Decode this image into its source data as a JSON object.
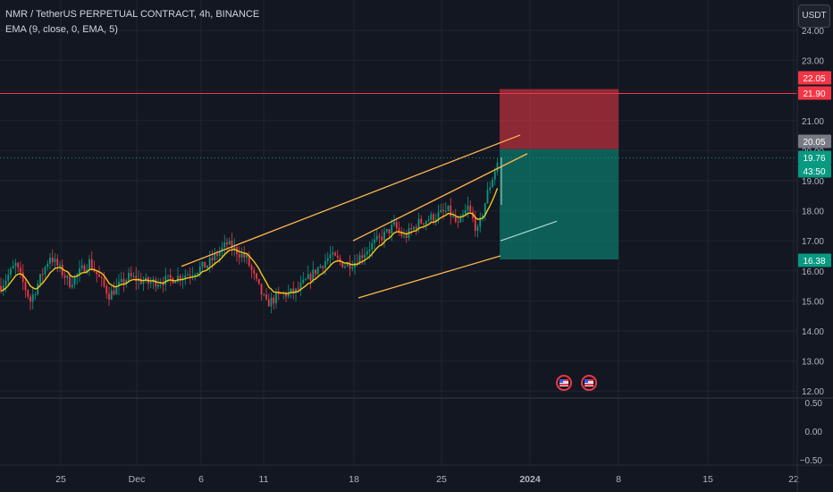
{
  "legend": {
    "symbol_line": "NMR / TetherUS PERPETUAL CONTRACT, 4h, BINANCE",
    "indicator_line": "EMA (9, close, 0, EMA, 5)"
  },
  "price_scale": {
    "unit_label": "USDT",
    "ticks": [
      24,
      23,
      22,
      21,
      20,
      19,
      18,
      17,
      16,
      15,
      14,
      13,
      12
    ],
    "tick_labels": [
      "24.00",
      "23.00",
      "22.00",
      "21.00",
      "20.00",
      "19.00",
      "18.00",
      "17.00",
      "16.00",
      "15.00",
      "14.00",
      "13.00",
      "12.00"
    ]
  },
  "oscillator_scale": {
    "ticks": [
      0.5,
      0,
      -0.5
    ],
    "tick_labels": [
      "0.50",
      "0.00",
      "−0.50"
    ]
  },
  "time_axis": {
    "labels": [
      "25",
      "Dec",
      "6",
      "11",
      "18",
      "25",
      "2024",
      "8",
      "15",
      "22"
    ]
  },
  "price_badges": [
    {
      "value": "22.05",
      "color": "#f23645"
    },
    {
      "value": "21.90",
      "color": "#f23645"
    },
    {
      "value": "20.05",
      "color": "#787b86"
    },
    {
      "value": "19.76",
      "color": "#089981"
    },
    {
      "value": "43:50",
      "color": "#089981"
    },
    {
      "value": "16.38",
      "color": "#089981"
    }
  ],
  "colors": {
    "up": "#089981",
    "down": "#f23645",
    "ema": "#f5c518",
    "channel": "#ffb74d",
    "resistance": "#f23645",
    "stop_zone": "#f23645",
    "target_zone": "#089981"
  },
  "chart_data": {
    "type": "candlestick",
    "timeframe": "4h",
    "ylim": [
      12,
      24.4
    ],
    "resistance_level": 21.9,
    "current_price": 19.76,
    "position": {
      "entry": 20.05,
      "stop": 22.05,
      "target": 16.38
    },
    "price_path": [
      [
        0,
        15.5
      ],
      [
        6,
        16.2
      ],
      [
        12,
        15.0
      ],
      [
        20,
        16.5
      ],
      [
        28,
        15.6
      ],
      [
        36,
        16.3
      ],
      [
        44,
        15.2
      ],
      [
        52,
        15.8
      ],
      [
        60,
        15.6
      ],
      [
        68,
        15.7
      ],
      [
        76,
        15.9
      ],
      [
        84,
        16.2
      ],
      [
        92,
        16.9
      ],
      [
        100,
        16.4
      ],
      [
        104,
        15.6
      ],
      [
        108,
        14.9
      ],
      [
        114,
        15.2
      ],
      [
        120,
        15.3
      ],
      [
        128,
        16.0
      ],
      [
        134,
        16.5
      ],
      [
        140,
        16.2
      ],
      [
        144,
        16.3
      ],
      [
        150,
        16.8
      ],
      [
        156,
        17.2
      ],
      [
        160,
        17.5
      ],
      [
        164,
        17.1
      ],
      [
        170,
        17.6
      ],
      [
        176,
        17.8
      ],
      [
        182,
        18.0
      ],
      [
        186,
        17.5
      ],
      [
        190,
        18.1
      ],
      [
        194,
        17.3
      ],
      [
        198,
        18.6
      ],
      [
        202,
        19.6
      ]
    ],
    "ema": {
      "period": 9,
      "source": "close"
    }
  }
}
